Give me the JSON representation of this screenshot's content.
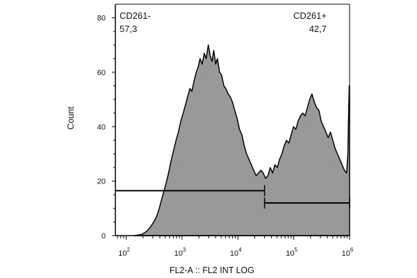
{
  "chart_data": {
    "type": "area",
    "title": "",
    "xlabel": "FL2-A :: FL2 INT LOG",
    "ylabel": "Count",
    "x_scale": "log",
    "xlim": [
      64,
      1000000
    ],
    "ylim": [
      0,
      85
    ],
    "y_ticks": [
      {
        "value": 0,
        "label": "0"
      },
      {
        "value": 20,
        "label": "20"
      },
      {
        "value": 40,
        "label": "40"
      },
      {
        "value": 60,
        "label": "60"
      },
      {
        "value": 80,
        "label": "80"
      }
    ],
    "x_ticks": [
      {
        "value": 100,
        "base": "10",
        "exp": "2"
      },
      {
        "value": 1000,
        "base": "10",
        "exp": "3"
      },
      {
        "value": 10000,
        "base": "10",
        "exp": "4"
      },
      {
        "value": 100000,
        "base": "10",
        "exp": "5"
      },
      {
        "value": 1000000,
        "base": "10",
        "exp": "6"
      }
    ],
    "series": [
      {
        "fill": "#999999",
        "stroke": "#000000",
        "points": [
          [
            140,
            0
          ],
          [
            190,
            0.4
          ],
          [
            230,
            1.5
          ],
          [
            270,
            3
          ],
          [
            310,
            5
          ],
          [
            350,
            7
          ],
          [
            390,
            10
          ],
          [
            440,
            14
          ],
          [
            500,
            18
          ],
          [
            560,
            22
          ],
          [
            630,
            27
          ],
          [
            700,
            31
          ],
          [
            780,
            35
          ],
          [
            860,
            38
          ],
          [
            950,
            42
          ],
          [
            1050,
            45
          ],
          [
            1150,
            48
          ],
          [
            1260,
            51
          ],
          [
            1380,
            54
          ],
          [
            1500,
            53
          ],
          [
            1650,
            57
          ],
          [
            1800,
            60
          ],
          [
            1950,
            62
          ],
          [
            2100,
            65
          ],
          [
            2300,
            63
          ],
          [
            2500,
            67
          ],
          [
            2700,
            65
          ],
          [
            2950,
            70
          ],
          [
            3200,
            66
          ],
          [
            3450,
            64
          ],
          [
            3700,
            68
          ],
          [
            4000,
            63
          ],
          [
            4300,
            65
          ],
          [
            4700,
            60
          ],
          [
            5100,
            59
          ],
          [
            5600,
            55
          ],
          [
            6100,
            54
          ],
          [
            6700,
            52
          ],
          [
            7300,
            51
          ],
          [
            8000,
            49
          ],
          [
            8800,
            46
          ],
          [
            9700,
            43
          ],
          [
            10700,
            39
          ],
          [
            11800,
            37
          ],
          [
            13000,
            33
          ],
          [
            14300,
            30
          ],
          [
            15800,
            28
          ],
          [
            17400,
            26
          ],
          [
            19200,
            24
          ],
          [
            21200,
            22
          ],
          [
            23400,
            23
          ],
          [
            25800,
            24
          ],
          [
            28400,
            23
          ],
          [
            31300,
            21
          ],
          [
            34500,
            22
          ],
          [
            38000,
            25
          ],
          [
            41800,
            23
          ],
          [
            46000,
            26
          ],
          [
            50600,
            25
          ],
          [
            55700,
            28
          ],
          [
            61300,
            30
          ],
          [
            67500,
            33
          ],
          [
            74300,
            35
          ],
          [
            81700,
            34
          ],
          [
            89900,
            37
          ],
          [
            98900,
            40
          ],
          [
            108800,
            39
          ],
          [
            119700,
            42
          ],
          [
            131700,
            44
          ],
          [
            144900,
            45
          ],
          [
            159400,
            44
          ],
          [
            175400,
            47
          ],
          [
            193000,
            50
          ],
          [
            212300,
            52
          ],
          [
            233600,
            49
          ],
          [
            257000,
            47
          ],
          [
            282700,
            46
          ],
          [
            311000,
            42
          ],
          [
            342100,
            40
          ],
          [
            376300,
            38
          ],
          [
            414000,
            36
          ],
          [
            455400,
            38
          ],
          [
            501000,
            35
          ],
          [
            551100,
            32
          ],
          [
            606200,
            30
          ],
          [
            666800,
            28
          ],
          [
            733500,
            26
          ],
          [
            806800,
            24
          ],
          [
            887500,
            23
          ],
          [
            930000,
            30
          ],
          [
            960000,
            45
          ],
          [
            985000,
            55
          ],
          [
            1000000,
            55
          ]
        ]
      }
    ],
    "gates": [
      {
        "name": "CD261-",
        "pct": "57,3",
        "x_start": 64,
        "x_end": 30000,
        "level": 16.5
      },
      {
        "name": "CD261+",
        "pct": "42,7",
        "x_start": 30000,
        "x_end": 1000000,
        "level": 12
      }
    ]
  }
}
